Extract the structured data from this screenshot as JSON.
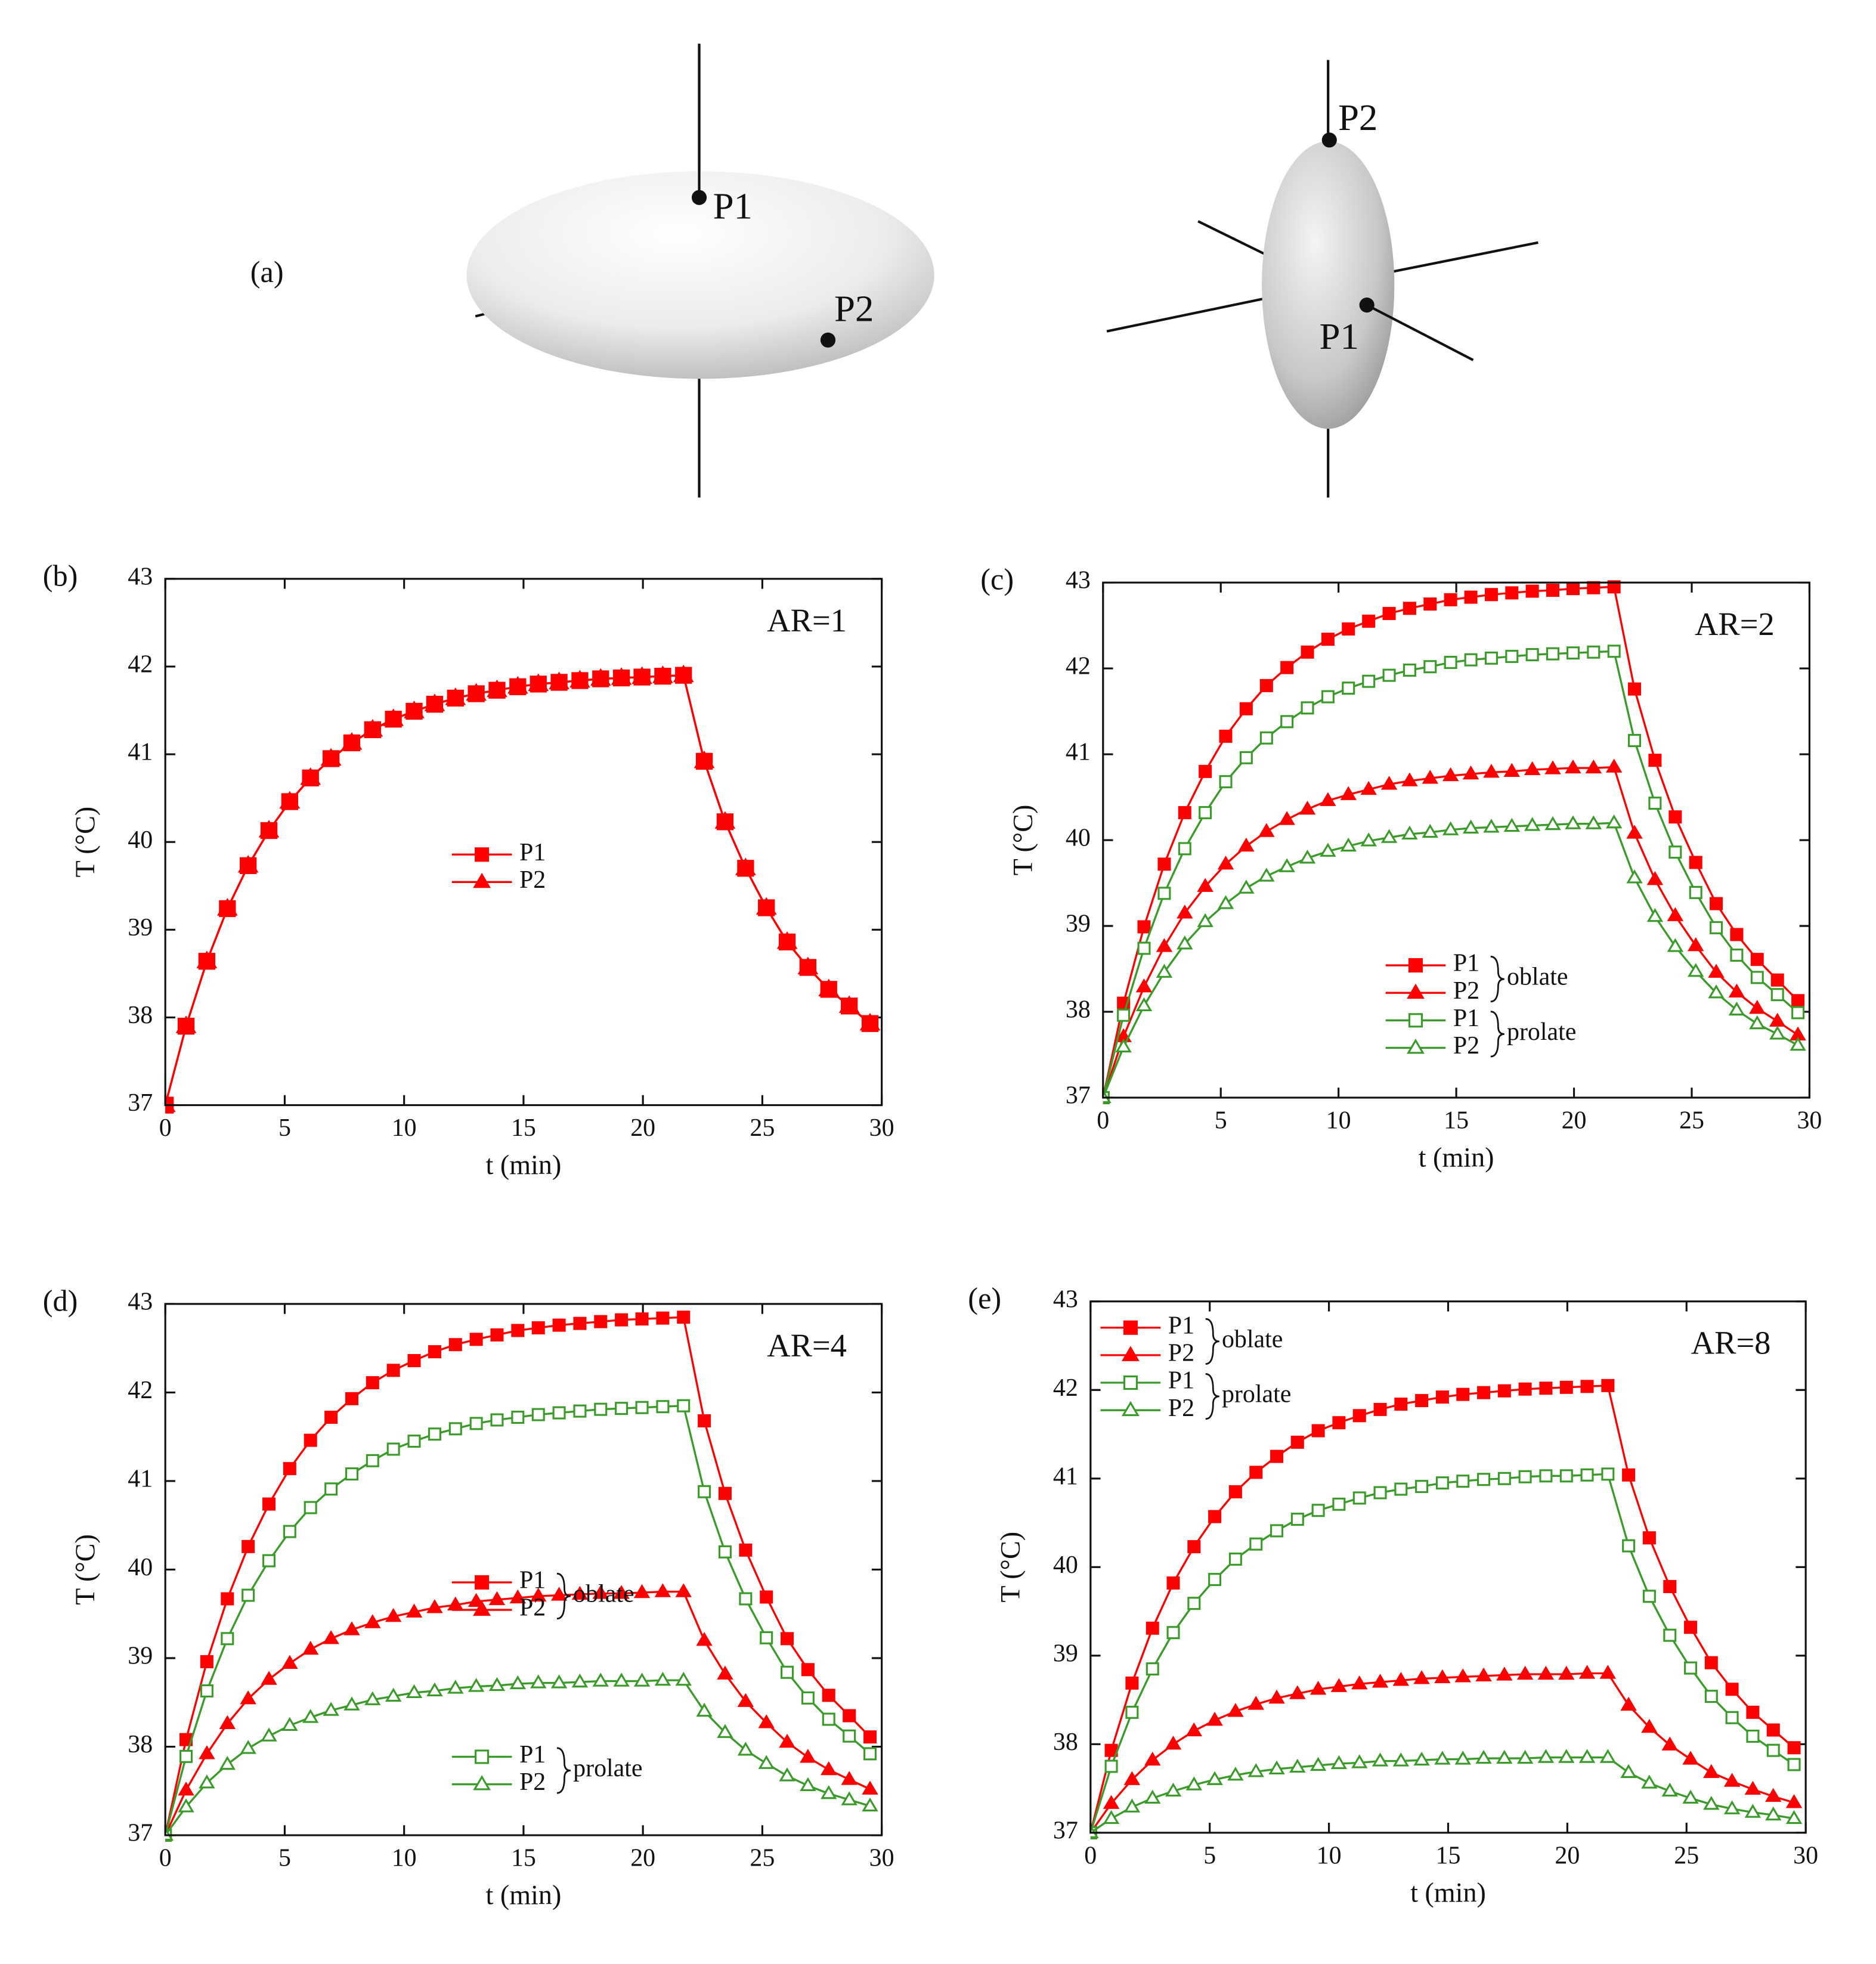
{
  "diagram": {
    "label": "(a)",
    "oblate": {
      "points": [
        "P1",
        "P2"
      ]
    },
    "prolate": {
      "points": [
        "P2",
        "P1"
      ]
    }
  },
  "chart_data": [
    {
      "type": "line",
      "panel_label": "(b)",
      "annotation": "AR=1",
      "xlabel": "t (min)",
      "ylabel": "T (°C)",
      "xlim": [
        0,
        30
      ],
      "xticks": [
        0,
        5,
        10,
        15,
        20,
        25,
        30
      ],
      "ylim": [
        37,
        43
      ],
      "yticks": [
        37,
        38,
        39,
        40,
        41,
        42,
        43
      ],
      "legend_loc": "center",
      "x": [
        0,
        0.87,
        1.74,
        2.6,
        3.47,
        4.34,
        5.21,
        6.08,
        6.94,
        7.81,
        8.68,
        9.55,
        10.42,
        11.28,
        12.15,
        13.02,
        13.89,
        14.76,
        15.62,
        16.49,
        17.36,
        18.23,
        19.1,
        19.96,
        20.83,
        21.7,
        22.57,
        23.44,
        24.3,
        25.17,
        26.04,
        26.91,
        27.78,
        28.64,
        29.51
      ],
      "series": [
        {
          "name": "P1",
          "color": "#ff0000",
          "marker": "square",
          "filled": true,
          "values": [
            37,
            37.9,
            38.64,
            39.24,
            39.73,
            40.13,
            40.46,
            40.73,
            40.95,
            41.13,
            41.28,
            41.4,
            41.49,
            41.57,
            41.64,
            41.69,
            41.73,
            41.77,
            41.8,
            41.82,
            41.84,
            41.86,
            41.87,
            41.88,
            41.89,
            41.9,
            40.92,
            40.23,
            39.7,
            39.25,
            38.86,
            38.57,
            38.32,
            38.13,
            37.93
          ]
        },
        {
          "name": "P2",
          "color": "#ff0000",
          "marker": "triangle",
          "filled": true,
          "values": [
            37,
            37.9,
            38.64,
            39.24,
            39.73,
            40.13,
            40.46,
            40.73,
            40.95,
            41.13,
            41.28,
            41.4,
            41.49,
            41.57,
            41.64,
            41.69,
            41.73,
            41.77,
            41.8,
            41.82,
            41.84,
            41.86,
            41.87,
            41.88,
            41.89,
            41.9,
            40.92,
            40.23,
            39.7,
            39.25,
            38.86,
            38.57,
            38.32,
            38.13,
            37.93
          ]
        }
      ]
    },
    {
      "type": "line",
      "panel_label": "(c)",
      "annotation": "AR=2",
      "xlabel": "t (min)",
      "ylabel": "T (°C)",
      "xlim": [
        0,
        30
      ],
      "xticks": [
        0,
        5,
        10,
        15,
        20,
        25,
        30
      ],
      "ylim": [
        37,
        43
      ],
      "yticks": [
        37,
        38,
        39,
        40,
        41,
        42,
        43
      ],
      "legend_loc": "lower center",
      "x": [
        0,
        0.87,
        1.74,
        2.6,
        3.47,
        4.34,
        5.21,
        6.08,
        6.94,
        7.81,
        8.68,
        9.55,
        10.42,
        11.28,
        12.15,
        13.02,
        13.89,
        14.76,
        15.62,
        16.49,
        17.36,
        18.23,
        19.1,
        19.96,
        20.83,
        21.7,
        22.57,
        23.44,
        24.3,
        25.17,
        26.04,
        26.91,
        27.78,
        28.64,
        29.51
      ],
      "series": [
        {
          "name": "P1",
          "group": "oblate",
          "color": "#ff0000",
          "marker": "square",
          "filled": true,
          "values": [
            37,
            38.1,
            38.99,
            39.72,
            40.32,
            40.8,
            41.21,
            41.53,
            41.8,
            42.01,
            42.19,
            42.34,
            42.46,
            42.55,
            42.64,
            42.7,
            42.75,
            42.8,
            42.83,
            42.86,
            42.88,
            42.9,
            42.91,
            42.93,
            42.94,
            42.95,
            41.76,
            40.93,
            40.27,
            39.74,
            39.26,
            38.9,
            38.61,
            38.37,
            38.13
          ]
        },
        {
          "name": "P2",
          "group": "oblate",
          "color": "#ff0000",
          "marker": "triangle",
          "filled": true,
          "values": [
            37,
            37.71,
            38.29,
            38.76,
            39.15,
            39.46,
            39.72,
            39.93,
            40.1,
            40.24,
            40.36,
            40.46,
            40.53,
            40.59,
            40.65,
            40.69,
            40.72,
            40.75,
            40.77,
            40.79,
            40.8,
            40.82,
            40.83,
            40.84,
            40.84,
            40.85,
            40.08,
            39.54,
            39.12,
            38.77,
            38.46,
            38.23,
            38.04,
            37.89,
            37.73
          ]
        },
        {
          "name": "P1",
          "group": "prolate",
          "color": "#3a9a2a",
          "marker": "square",
          "filled": false,
          "values": [
            37,
            37.96,
            38.74,
            39.38,
            39.9,
            40.32,
            40.68,
            40.96,
            41.19,
            41.38,
            41.54,
            41.67,
            41.77,
            41.85,
            41.92,
            41.98,
            42.02,
            42.07,
            42.1,
            42.12,
            42.14,
            42.16,
            42.17,
            42.18,
            42.19,
            42.2,
            41.16,
            40.43,
            39.86,
            39.39,
            38.98,
            38.66,
            38.4,
            38.2,
            37.99
          ]
        },
        {
          "name": "P2",
          "group": "prolate",
          "color": "#3a9a2a",
          "marker": "triangle",
          "filled": false,
          "values": [
            37,
            37.59,
            38.07,
            38.46,
            38.79,
            39.05,
            39.26,
            39.44,
            39.58,
            39.69,
            39.79,
            39.87,
            39.93,
            39.99,
            40.03,
            40.07,
            40.09,
            40.12,
            40.14,
            40.15,
            40.16,
            40.17,
            40.18,
            40.19,
            40.19,
            40.2,
            39.56,
            39.11,
            38.76,
            38.47,
            38.22,
            38.02,
            37.86,
            37.74,
            37.61
          ]
        }
      ]
    },
    {
      "type": "line",
      "panel_label": "(d)",
      "annotation": "AR=4",
      "xlabel": "t (min)",
      "ylabel": "T (°C)",
      "xlim": [
        0,
        30
      ],
      "xticks": [
        0,
        5,
        10,
        15,
        20,
        25,
        30
      ],
      "ylim": [
        37,
        43
      ],
      "yticks": [
        37,
        38,
        39,
        40,
        41,
        42,
        43
      ],
      "legend_loc": [
        "center",
        "lower center"
      ],
      "x": [
        0,
        0.87,
        1.74,
        2.6,
        3.47,
        4.34,
        5.21,
        6.08,
        6.94,
        7.81,
        8.68,
        9.55,
        10.42,
        11.28,
        12.15,
        13.02,
        13.89,
        14.76,
        15.62,
        16.49,
        17.36,
        18.23,
        19.1,
        19.96,
        20.83,
        21.7,
        22.57,
        23.44,
        24.3,
        25.17,
        26.04,
        26.91,
        27.78,
        28.64,
        29.51
      ],
      "series": [
        {
          "name": "P1",
          "group": "oblate",
          "color": "#ff0000",
          "marker": "square",
          "filled": true,
          "values": [
            37,
            38.08,
            38.96,
            39.67,
            40.26,
            40.74,
            41.14,
            41.46,
            41.72,
            41.93,
            42.11,
            42.25,
            42.36,
            42.46,
            42.54,
            42.6,
            42.65,
            42.7,
            42.73,
            42.76,
            42.78,
            42.8,
            42.82,
            42.83,
            42.84,
            42.85,
            41.68,
            40.86,
            40.22,
            39.69,
            39.22,
            38.87,
            38.58,
            38.35,
            38.11
          ]
        },
        {
          "name": "P2",
          "group": "oblate",
          "color": "#ff0000",
          "marker": "triangle",
          "filled": true,
          "values": [
            37,
            37.51,
            37.92,
            38.26,
            38.54,
            38.76,
            38.94,
            39.1,
            39.22,
            39.32,
            39.4,
            39.47,
            39.52,
            39.57,
            39.6,
            39.64,
            39.66,
            39.68,
            39.7,
            39.71,
            39.72,
            39.73,
            39.73,
            39.74,
            39.75,
            39.75,
            39.2,
            38.82,
            38.51,
            38.27,
            38.05,
            37.88,
            37.74,
            37.63,
            37.52
          ]
        },
        {
          "name": "P1",
          "group": "prolate",
          "color": "#3a9a2a",
          "marker": "square",
          "filled": false,
          "values": [
            37,
            37.89,
            38.63,
            39.22,
            39.71,
            40.1,
            40.43,
            40.7,
            40.91,
            41.08,
            41.23,
            41.36,
            41.45,
            41.53,
            41.59,
            41.65,
            41.69,
            41.72,
            41.75,
            41.77,
            41.79,
            41.81,
            41.82,
            41.83,
            41.84,
            41.85,
            40.88,
            40.2,
            39.67,
            39.23,
            38.84,
            38.55,
            38.31,
            38.12,
            37.92
          ]
        },
        {
          "name": "P2",
          "group": "prolate",
          "color": "#3a9a2a",
          "marker": "triangle",
          "filled": false,
          "values": [
            37,
            37.32,
            37.59,
            37.8,
            37.98,
            38.12,
            38.24,
            38.33,
            38.41,
            38.47,
            38.53,
            38.57,
            38.61,
            38.63,
            38.66,
            38.68,
            38.69,
            38.71,
            38.72,
            38.72,
            38.73,
            38.74,
            38.74,
            38.74,
            38.75,
            38.75,
            38.4,
            38.16,
            37.96,
            37.81,
            37.67,
            37.56,
            37.47,
            37.4,
            37.33
          ]
        }
      ]
    },
    {
      "type": "line",
      "panel_label": "(e)",
      "annotation": "AR=8",
      "xlabel": "t (min)",
      "ylabel": "T (°C)",
      "xlim": [
        0,
        30
      ],
      "xticks": [
        0,
        5,
        10,
        15,
        20,
        25,
        30
      ],
      "ylim": [
        37,
        43
      ],
      "yticks": [
        37,
        38,
        39,
        40,
        41,
        42,
        43
      ],
      "legend_loc": "upper left",
      "x": [
        0,
        0.87,
        1.74,
        2.6,
        3.47,
        4.34,
        5.21,
        6.08,
        6.94,
        7.81,
        8.68,
        9.55,
        10.42,
        11.28,
        12.15,
        13.02,
        13.89,
        14.76,
        15.62,
        16.49,
        17.36,
        18.23,
        19.1,
        19.96,
        20.83,
        21.7,
        22.57,
        23.44,
        24.3,
        25.17,
        26.04,
        26.91,
        27.78,
        28.64,
        29.51
      ],
      "series": [
        {
          "name": "P1",
          "group": "oblate",
          "color": "#ff0000",
          "marker": "square",
          "filled": true,
          "values": [
            37,
            37.93,
            38.69,
            39.31,
            39.82,
            40.23,
            40.57,
            40.85,
            41.07,
            41.25,
            41.41,
            41.54,
            41.63,
            41.71,
            41.78,
            41.84,
            41.88,
            41.92,
            41.95,
            41.97,
            41.99,
            42.01,
            42.02,
            42.03,
            42.04,
            42.05,
            41.04,
            40.33,
            39.78,
            39.32,
            38.92,
            38.62,
            38.36,
            38.16,
            37.96
          ]
        },
        {
          "name": "P2",
          "group": "oblate",
          "color": "#ff0000",
          "marker": "triangle",
          "filled": true,
          "values": [
            37,
            37.33,
            37.6,
            37.82,
            38.0,
            38.15,
            38.27,
            38.37,
            38.45,
            38.52,
            38.57,
            38.62,
            38.65,
            38.68,
            38.7,
            38.72,
            38.74,
            38.75,
            38.76,
            38.77,
            38.78,
            38.79,
            38.79,
            38.79,
            38.8,
            38.8,
            38.44,
            38.19,
            37.99,
            37.83,
            37.68,
            37.58,
            37.49,
            37.41,
            37.34
          ]
        },
        {
          "name": "P1",
          "group": "prolate",
          "color": "#3a9a2a",
          "marker": "square",
          "filled": false,
          "values": [
            37,
            37.75,
            38.36,
            38.85,
            39.26,
            39.59,
            39.86,
            40.09,
            40.26,
            40.41,
            40.54,
            40.64,
            40.71,
            40.78,
            40.84,
            40.88,
            40.91,
            40.95,
            40.97,
            40.99,
            41.0,
            41.02,
            41.03,
            41.03,
            41.04,
            41.05,
            40.24,
            39.67,
            39.23,
            38.86,
            38.54,
            38.3,
            38.09,
            37.93,
            37.77
          ]
        },
        {
          "name": "P2",
          "group": "prolate",
          "color": "#3a9a2a",
          "marker": "triangle",
          "filled": false,
          "values": [
            37,
            37.16,
            37.29,
            37.39,
            37.47,
            37.54,
            37.6,
            37.65,
            37.69,
            37.72,
            37.74,
            37.76,
            37.78,
            37.79,
            37.81,
            37.81,
            37.82,
            37.83,
            37.83,
            37.84,
            37.84,
            37.84,
            37.85,
            37.85,
            37.85,
            37.85,
            37.68,
            37.56,
            37.47,
            37.39,
            37.32,
            37.27,
            37.23,
            37.2,
            37.16
          ]
        }
      ]
    }
  ]
}
